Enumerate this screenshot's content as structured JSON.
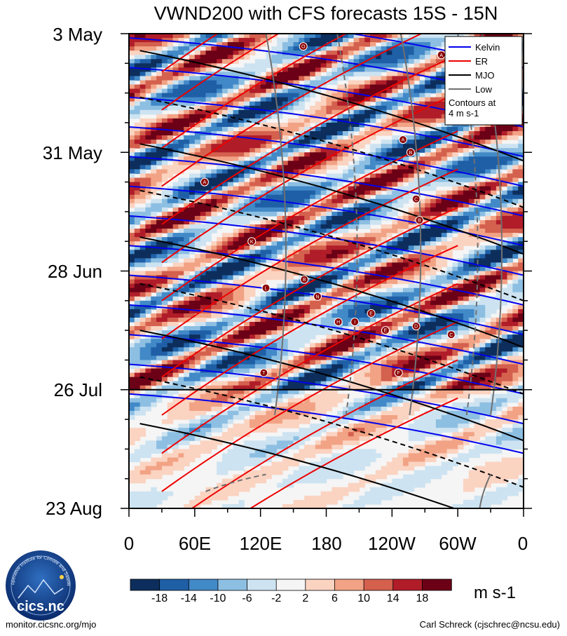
{
  "chart_data": {
    "type": "heatmap",
    "title": "VWND200 with CFS forecasts  15S - 15N",
    "y_labels": [
      "3 May",
      "31 May",
      "28 Jun",
      "26 Jul",
      "23 Aug"
    ],
    "x_labels": [
      "0",
      "60E",
      "120E",
      "180",
      "120W",
      "60W",
      "0"
    ],
    "x_range_deg": [
      0,
      360
    ],
    "y_range_days": [
      0,
      112
    ],
    "forecast_start_day": 84,
    "colorbar": {
      "levels": [
        "-18",
        "-14",
        "-10",
        "-6",
        "-2",
        "2",
        "6",
        "10",
        "14",
        "18"
      ],
      "colors": [
        "#0d2e5c",
        "#1f5fa6",
        "#4289c8",
        "#8dbfe2",
        "#cde3f1",
        "#f5f5f5",
        "#fbd3c1",
        "#f2a385",
        "#d4604e",
        "#b01d29",
        "#6b0016"
      ],
      "units": "m s-1"
    },
    "legend": {
      "entries": [
        {
          "name": "Kelvin",
          "color": "#0000ee"
        },
        {
          "name": "ER",
          "color": "#ee0000"
        },
        {
          "name": "MJO",
          "color": "#000000"
        },
        {
          "name": "Low",
          "color": "#707070"
        }
      ],
      "note_line1": "Contours at",
      "note_line2": "4 m s-1"
    },
    "markers": [
      {
        "letter": "A",
        "lon": 285,
        "day": 5
      },
      {
        "letter": "O",
        "lon": 159,
        "day": 3
      },
      {
        "letter": "A",
        "lon": 250,
        "day": 25
      },
      {
        "letter": "B",
        "lon": 257,
        "day": 28
      },
      {
        "letter": "A",
        "lon": 69,
        "day": 35
      },
      {
        "letter": "C",
        "lon": 262,
        "day": 39
      },
      {
        "letter": "B",
        "lon": 265,
        "day": 44
      },
      {
        "letter": "K",
        "lon": 112,
        "day": 49
      },
      {
        "letter": "L",
        "lon": 125,
        "day": 60
      },
      {
        "letter": "B",
        "lon": 160,
        "day": 58
      },
      {
        "letter": "N",
        "lon": 172,
        "day": 62
      },
      {
        "letter": "E",
        "lon": 221,
        "day": 66
      },
      {
        "letter": "H",
        "lon": 191,
        "day": 68
      },
      {
        "letter": "I",
        "lon": 206,
        "day": 68
      },
      {
        "letter": "E",
        "lon": 234,
        "day": 70
      },
      {
        "letter": "D",
        "lon": 262,
        "day": 69
      },
      {
        "letter": "C",
        "lon": 294,
        "day": 71
      },
      {
        "letter": "T",
        "lon": 123,
        "day": 80
      },
      {
        "letter": "F",
        "lon": 246,
        "day": 80
      }
    ]
  },
  "logo": {
    "text": "cics.nc",
    "ring_text": "Cooperative Institute for Climate and Satellites"
  },
  "footer": {
    "left": "monitor.cicsnc.org/mjo",
    "right": "Carl Schreck (cjschrec@ncsu.edu)"
  }
}
